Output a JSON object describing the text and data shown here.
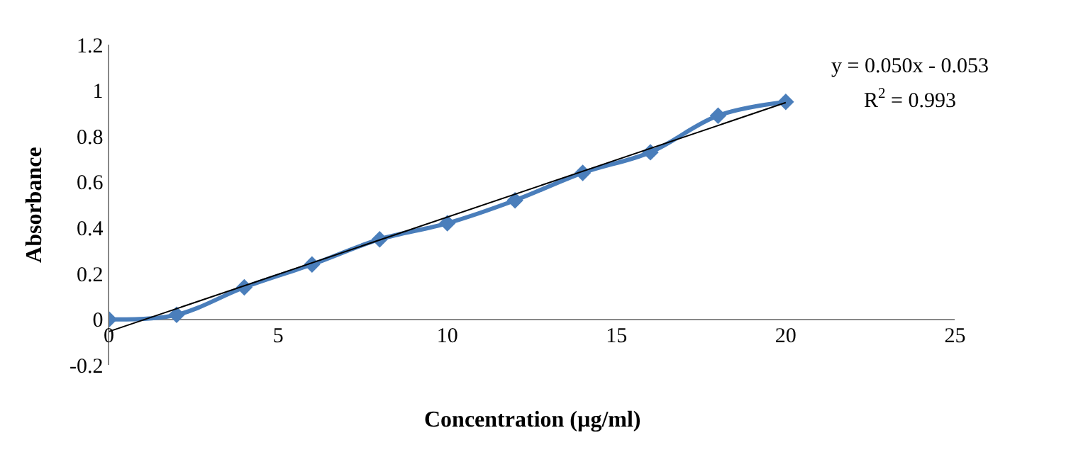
{
  "chart_data": {
    "type": "line",
    "xlabel": "Concentration (µg/ml)",
    "ylabel": "Absorbance",
    "x": [
      0,
      2,
      4,
      6,
      8,
      10,
      12,
      14,
      16,
      18,
      20
    ],
    "series": [
      {
        "color": "#4a7ebb",
        "values": [
          0,
          0.02,
          0.14,
          0.24,
          0.35,
          0.42,
          0.52,
          0.64,
          0.73,
          0.89,
          0.95
        ],
        "marker": "diamond"
      },
      {
        "type": "line",
        "x": [
          0,
          20
        ],
        "color": "#000000",
        "values": [
          -0.053,
          0.947
        ],
        "marker": "none"
      }
    ],
    "annotations": [
      "y = 0.050x - 0.053",
      "R$^{2}$ = 0.993"
    ],
    "xlim": [
      0,
      25
    ],
    "xticks": [
      0,
      5,
      10,
      15,
      20,
      25
    ],
    "ylim": [
      -0.2,
      1.2
    ],
    "yticks": [
      -0.2,
      0,
      0.2,
      0.4,
      0.6,
      0.8,
      1,
      1.2
    ]
  }
}
